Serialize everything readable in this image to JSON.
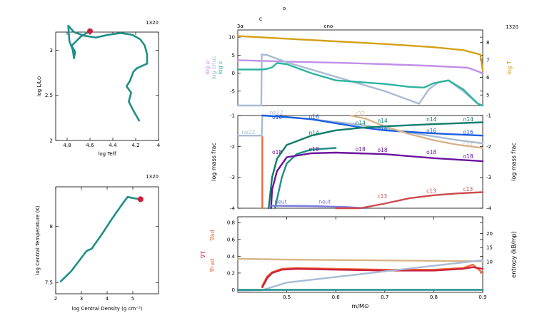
{
  "figure": {
    "model_number_hr": "1320",
    "model_number_tc": "1320",
    "model_number_main": "1320",
    "top_marker_c": "c",
    "top_marker_small": "o"
  },
  "colors": {
    "teal": "#1f8f88",
    "red": "#cc1f3a",
    "gold": "#d4a017",
    "violet": "#c18fe8",
    "seafoam": "#2db3a0",
    "lightblue": "#a7bbd6",
    "orange": "#f06a3c",
    "tan": "#d8b48a",
    "darkteal": "#0f7c6a",
    "blue": "#1a5fe0",
    "purple": "#6a12a0",
    "rose": "#cc4b4b",
    "periwinkle": "#7c7ce0"
  },
  "chart_data": [
    {
      "id": "hr",
      "type": "line",
      "xlabel": "log Teff",
      "ylabel": "log L/L⊙",
      "xlim": [
        4.9,
        4.0
      ],
      "ylim": [
        2.0,
        3.2
      ],
      "xticks": [
        4.8,
        4.6,
        4.4,
        4.2,
        4.0
      ],
      "xtick_labels": [
        "4.8",
        "4.6",
        "4.4",
        "4.2",
        "4"
      ],
      "yticks": [
        2.0,
        2.5,
        3.0
      ],
      "ytick_labels": [
        "2",
        "2.5",
        "3"
      ],
      "series": [
        {
          "color": "#1f8f88",
          "x": [
            4.17,
            4.22,
            4.26,
            4.24,
            4.28,
            4.25,
            4.22,
            4.19,
            4.1,
            4.1,
            4.12,
            4.16,
            4.23,
            4.33,
            4.44,
            4.55,
            4.65,
            4.74,
            4.79,
            4.78,
            4.75,
            4.74,
            4.73,
            4.76,
            4.72,
            4.68,
            4.63,
            4.6
          ],
          "y": [
            2.22,
            2.33,
            2.43,
            2.53,
            2.6,
            2.66,
            2.76,
            2.8,
            2.85,
            2.95,
            3.05,
            3.12,
            3.17,
            3.19,
            3.17,
            3.14,
            3.16,
            3.2,
            3.27,
            3.1,
            3.0,
            2.91,
            2.98,
            3.05,
            3.1,
            3.15,
            3.19,
            3.21
          ]
        }
      ],
      "marker": {
        "x": 4.6,
        "y": 3.21,
        "color": "#cc1f3a"
      }
    },
    {
      "id": "tc_rhoc",
      "type": "line",
      "xlabel": "log Central Density (g cm⁻³)",
      "ylabel": "log Central Temperature (K)",
      "xlim": [
        2.0,
        6.0
      ],
      "ylim": [
        7.4,
        8.35
      ],
      "xticks": [
        2,
        3,
        4,
        5
      ],
      "xtick_labels": [
        "2",
        "3",
        "4",
        "5"
      ],
      "yticks": [
        7.5,
        8.0
      ],
      "ytick_labels": [
        "7.5",
        "8"
      ],
      "series": [
        {
          "color": "#1f8f88",
          "x": [
            2.2,
            2.6,
            3.0,
            3.2,
            3.4,
            3.8,
            4.2,
            4.6,
            4.8,
            5.0,
            5.3
          ],
          "y": [
            7.51,
            7.6,
            7.72,
            7.78,
            7.8,
            7.93,
            8.07,
            8.2,
            8.26,
            8.25,
            8.24
          ]
        }
      ],
      "marker": {
        "x": 5.3,
        "y": 8.24,
        "color": "#cc1f3a"
      }
    },
    {
      "id": "profile_top",
      "type": "line",
      "xlim": [
        0.4,
        0.9
      ],
      "ylim": [
        -9,
        12
      ],
      "yticks": [
        -5,
        0,
        5,
        10
      ],
      "ytick_labels": [
        "-5",
        "0",
        "5",
        "10"
      ],
      "right_ylim": [
        4.4,
        8.7
      ],
      "right_yticks": [
        5,
        6,
        7,
        8
      ],
      "right_ytick_labels": [
        "5",
        "6",
        "7",
        "8"
      ],
      "left_labels": [
        "log ρ",
        "log εnuc",
        "log ε"
      ],
      "right_label": "log T",
      "top_labels": [
        {
          "text": "3α",
          "x": 0.405
        },
        {
          "text": "cno",
          "x": 0.585
        }
      ],
      "series": [
        {
          "name": "log T",
          "axis": "right",
          "color": "#d4a017",
          "x": [
            0.4,
            0.5,
            0.6,
            0.7,
            0.8,
            0.86,
            0.895,
            0.9
          ],
          "y": [
            8.35,
            8.2,
            8.05,
            7.9,
            7.72,
            7.55,
            7.3,
            6.4
          ]
        },
        {
          "name": "log ρ",
          "color": "#c18fe8",
          "x": [
            0.4,
            0.5,
            0.6,
            0.7,
            0.8,
            0.87,
            0.9
          ],
          "y": [
            3.6,
            3.2,
            2.9,
            2.5,
            2.0,
            1.5,
            0.0
          ]
        },
        {
          "name": "log εnuc",
          "color": "#a7bbd6",
          "x": [
            0.4,
            0.448,
            0.449,
            0.46,
            0.5,
            0.55,
            0.6,
            0.65,
            0.7,
            0.75,
            0.77,
            0.79,
            0.81,
            0.83,
            0.86,
            0.89,
            0.9
          ],
          "y": [
            -9,
            -9,
            5.2,
            5.0,
            3.0,
            1.0,
            -1.0,
            -3.0,
            -5.0,
            -7.5,
            -8.5,
            -4.5,
            -2.5,
            -2.0,
            -5.0,
            -8.5,
            -9
          ]
        },
        {
          "name": "log ε",
          "color": "#2db3a0",
          "x": [
            0.4,
            0.45,
            0.46,
            0.47,
            0.48,
            0.5,
            0.55,
            0.6,
            0.65,
            0.7,
            0.75,
            0.78,
            0.8,
            0.83,
            0.86,
            0.89,
            0.9
          ],
          "y": [
            1.0,
            1.0,
            1.2,
            1.6,
            2.8,
            2.5,
            0.0,
            -2.0,
            -2.5,
            -3.0,
            -3.8,
            -4.0,
            -2.8,
            -2.0,
            -4.5,
            -8.5,
            -9
          ]
        }
      ]
    },
    {
      "id": "profile_abund",
      "type": "line",
      "xlim": [
        0.4,
        0.9
      ],
      "ylim": [
        -4,
        -1
      ],
      "ylabel": "log mass frac",
      "right_ylabel": "log mass frac",
      "yticks": [
        -4,
        -3,
        -2,
        -1
      ],
      "ytick_labels": [
        "-4",
        "-3",
        "-2",
        "-1"
      ],
      "series": [
        {
          "name": "ne22",
          "color": "#a7bbd6",
          "x": [
            0.4,
            0.449,
            0.45,
            0.46,
            0.55,
            0.65,
            0.75,
            0.85,
            0.9
          ],
          "y": [
            -1.65,
            -1.65,
            -1.0,
            -1.0,
            -1.12,
            -1.3,
            -1.55,
            -1.8,
            -1.9
          ]
        },
        {
          "name": "o16",
          "color": "#1a5fe0",
          "x": [
            0.45,
            0.5,
            0.55,
            0.6,
            0.65,
            0.7,
            0.75,
            0.8,
            0.9
          ],
          "y": [
            -1.0,
            -1.05,
            -1.12,
            -1.25,
            -1.38,
            -1.48,
            -1.53,
            -1.58,
            -1.65
          ]
        },
        {
          "name": "c12",
          "color": "#d8b48a",
          "x": [
            0.63,
            0.66,
            0.7,
            0.75,
            0.8,
            0.85,
            0.9
          ],
          "y": [
            -1.0,
            -1.1,
            -1.35,
            -1.6,
            -1.8,
            -1.95,
            -2.05
          ]
        },
        {
          "name": "n14",
          "color": "#0f7c6a",
          "x": [
            0.463,
            0.47,
            0.48,
            0.5,
            0.55,
            0.6,
            0.65,
            0.7,
            0.8,
            0.9
          ],
          "y": [
            -4.0,
            -3.0,
            -2.4,
            -1.95,
            -1.65,
            -1.48,
            -1.4,
            -1.35,
            -1.28,
            -1.22
          ]
        },
        {
          "name": "n14 inner",
          "color": "#1f8f88",
          "x": [
            0.476,
            0.49,
            0.5,
            0.52,
            0.55,
            0.6
          ],
          "y": [
            -4.0,
            -3.0,
            -2.55,
            -2.25,
            -2.1,
            -2.05
          ]
        },
        {
          "name": "o18",
          "color": "#6a12a0",
          "x": [
            0.468,
            0.47,
            0.48,
            0.5,
            0.55,
            0.6,
            0.7,
            0.8,
            0.9
          ],
          "y": [
            -4.0,
            -3.4,
            -2.8,
            -2.35,
            -2.22,
            -2.2,
            -2.25,
            -2.38,
            -2.48
          ]
        },
        {
          "name": "neut",
          "color": "#7c7ce0",
          "x": [
            0.47,
            0.55,
            0.62,
            0.66
          ],
          "y": [
            -3.92,
            -3.93,
            -3.96,
            -4.0
          ]
        },
        {
          "name": "c13",
          "color": "#cc4b4b",
          "x": [
            0.6,
            0.65,
            0.7,
            0.75,
            0.8,
            0.85,
            0.9
          ],
          "y": [
            -4.0,
            -4.0,
            -3.85,
            -3.68,
            -3.58,
            -3.52,
            -3.48
          ]
        },
        {
          "name": "h1",
          "color": "#f06a3c",
          "x": [
            0.45,
            0.45
          ],
          "y": [
            -1.7,
            -4.0
          ]
        }
      ],
      "labels": [
        {
          "text": "ne22",
          "x": 0.408,
          "y": -1.6,
          "color": "#a7bbd6"
        },
        {
          "text": "ne22",
          "x": 0.465,
          "y": -0.97,
          "color": "#a7bbd6"
        },
        {
          "text": "o16",
          "x": 0.47,
          "y": -1.12,
          "color": "#1a5fe0"
        },
        {
          "text": "o16",
          "x": 0.545,
          "y": -1.1,
          "color": "#1a5fe0"
        },
        {
          "text": "o16",
          "x": 0.685,
          "y": -1.48,
          "color": "#1a5fe0"
        },
        {
          "text": "o16",
          "x": 0.785,
          "y": -1.55,
          "color": "#1a5fe0"
        },
        {
          "text": "o16",
          "x": 0.86,
          "y": -1.6,
          "color": "#1a5fe0"
        },
        {
          "text": "c12",
          "x": 0.64,
          "y": -1.0,
          "color": "#d8b48a"
        },
        {
          "text": "c12",
          "x": 0.86,
          "y": -1.98,
          "color": "#d8b48a"
        },
        {
          "text": "n14",
          "x": 0.545,
          "y": -1.62,
          "color": "#0f7c6a"
        },
        {
          "text": "n14",
          "x": 0.64,
          "y": -1.3,
          "color": "#0f7c6a"
        },
        {
          "text": "n14",
          "x": 0.685,
          "y": -1.23,
          "color": "#0f7c6a"
        },
        {
          "text": "n14",
          "x": 0.785,
          "y": -1.18,
          "color": "#0f7c6a"
        },
        {
          "text": "n14",
          "x": 0.86,
          "y": -1.18,
          "color": "#0f7c6a"
        },
        {
          "text": "o18",
          "x": 0.47,
          "y": -2.25,
          "color": "#6a12a0"
        },
        {
          "text": "o18",
          "x": 0.545,
          "y": -2.15,
          "color": "#6a12a0"
        },
        {
          "text": "o18",
          "x": 0.64,
          "y": -2.15,
          "color": "#6a12a0"
        },
        {
          "text": "o18",
          "x": 0.685,
          "y": -2.18,
          "color": "#6a12a0"
        },
        {
          "text": "o18",
          "x": 0.785,
          "y": -2.25,
          "color": "#6a12a0"
        },
        {
          "text": "o18",
          "x": 0.86,
          "y": -2.38,
          "color": "#6a12a0"
        },
        {
          "text": "neut",
          "x": 0.475,
          "y": -3.85,
          "color": "#7c7ce0"
        },
        {
          "text": "neut",
          "x": 0.565,
          "y": -3.85,
          "color": "#7c7ce0"
        },
        {
          "text": "c13",
          "x": 0.685,
          "y": -3.68,
          "color": "#cc4b4b"
        },
        {
          "text": "c13",
          "x": 0.785,
          "y": -3.5,
          "color": "#cc4b4b"
        },
        {
          "text": "c13",
          "x": 0.86,
          "y": -3.45,
          "color": "#cc4b4b"
        }
      ]
    },
    {
      "id": "profile_grad",
      "type": "line",
      "xlim": [
        0.4,
        0.9
      ],
      "ylim": [
        -0.03,
        0.87
      ],
      "xlabel": "m/M⊙",
      "xticks": [
        0.5,
        0.6,
        0.7,
        0.8,
        0.9
      ],
      "xtick_labels": [
        "0.5",
        "0.6",
        "0.7",
        "0.8",
        "0.9"
      ],
      "yticks": [
        0,
        0.2,
        0.4,
        0.6,
        0.8
      ],
      "ytick_labels": [
        "0",
        "0.2",
        "0.4",
        "0.6",
        "0.8"
      ],
      "right_ylim": [
        -1,
        26
      ],
      "right_yticks": [
        10,
        15,
        20
      ],
      "right_ytick_labels": [
        "10",
        "15",
        "20"
      ],
      "left_labels": [
        "∇ad",
        "∇T",
        "∇rad"
      ],
      "right_label": "entropy (kB/mp)",
      "series": [
        {
          "name": "∇ad",
          "color": "#d8b48a",
          "x": [
            0.4,
            0.5,
            0.6,
            0.7,
            0.8,
            0.9
          ],
          "y": [
            0.37,
            0.36,
            0.355,
            0.35,
            0.345,
            0.34
          ]
        },
        {
          "name": "∇rad",
          "color": "#f06a3c",
          "x": [
            0.45,
            0.46,
            0.47,
            0.49,
            0.52,
            0.6,
            0.7,
            0.8,
            0.86,
            0.88,
            0.9
          ],
          "y": [
            0.05,
            0.16,
            0.21,
            0.25,
            0.26,
            0.25,
            0.24,
            0.24,
            0.26,
            0.3,
            0.2
          ]
        },
        {
          "name": "∇T",
          "color": "#cc1f3a",
          "x": [
            0.45,
            0.46,
            0.47,
            0.49,
            0.52,
            0.6,
            0.7,
            0.8,
            0.86,
            0.88,
            0.9
          ],
          "y": [
            0.03,
            0.14,
            0.2,
            0.24,
            0.25,
            0.24,
            0.23,
            0.23,
            0.25,
            0.27,
            0.25
          ]
        },
        {
          "name": "entropy",
          "axis": "right",
          "color": "#a7bbd6",
          "x": [
            0.4,
            0.45,
            0.5,
            0.6,
            0.7,
            0.8,
            0.9
          ],
          "y": [
            -0.3,
            -0.2,
            2.5,
            4.5,
            6.5,
            8.5,
            10.5
          ]
        },
        {
          "name": "base",
          "color": "#1f8f88",
          "x": [
            0.4,
            0.9
          ],
          "y": [
            0.0,
            0.0
          ]
        }
      ]
    }
  ]
}
